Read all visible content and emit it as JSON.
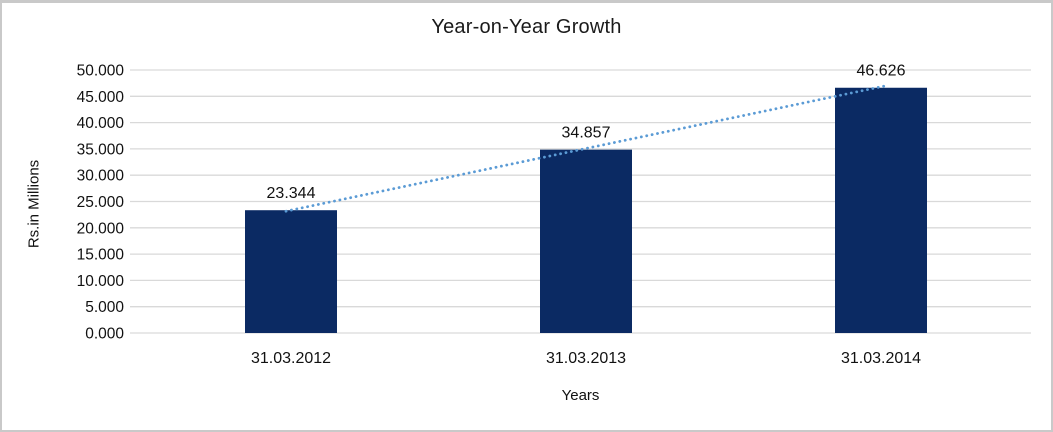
{
  "chart_data": {
    "type": "bar",
    "title": "Year-on-Year Growth",
    "xlabel": "Years",
    "ylabel": "Rs.in Millions",
    "categories": [
      "31.03.2012",
      "31.03.2013",
      "31.03.2014"
    ],
    "values": [
      23.344,
      34.857,
      46.626
    ],
    "value_labels": [
      "23.344",
      "34.857",
      "46.626"
    ],
    "ylim": [
      0,
      50
    ],
    "ytick_step": 5,
    "ytick_decimals": 3,
    "grid": true,
    "legend": "none",
    "bar_color": "#0b2a63",
    "trendline": {
      "type": "linear",
      "style": "dotted",
      "color": "#5b9bd5"
    },
    "gridline_color": "#d9d9d9",
    "frame_border_color": "#c9c9c9",
    "text_color": "#111111"
  }
}
